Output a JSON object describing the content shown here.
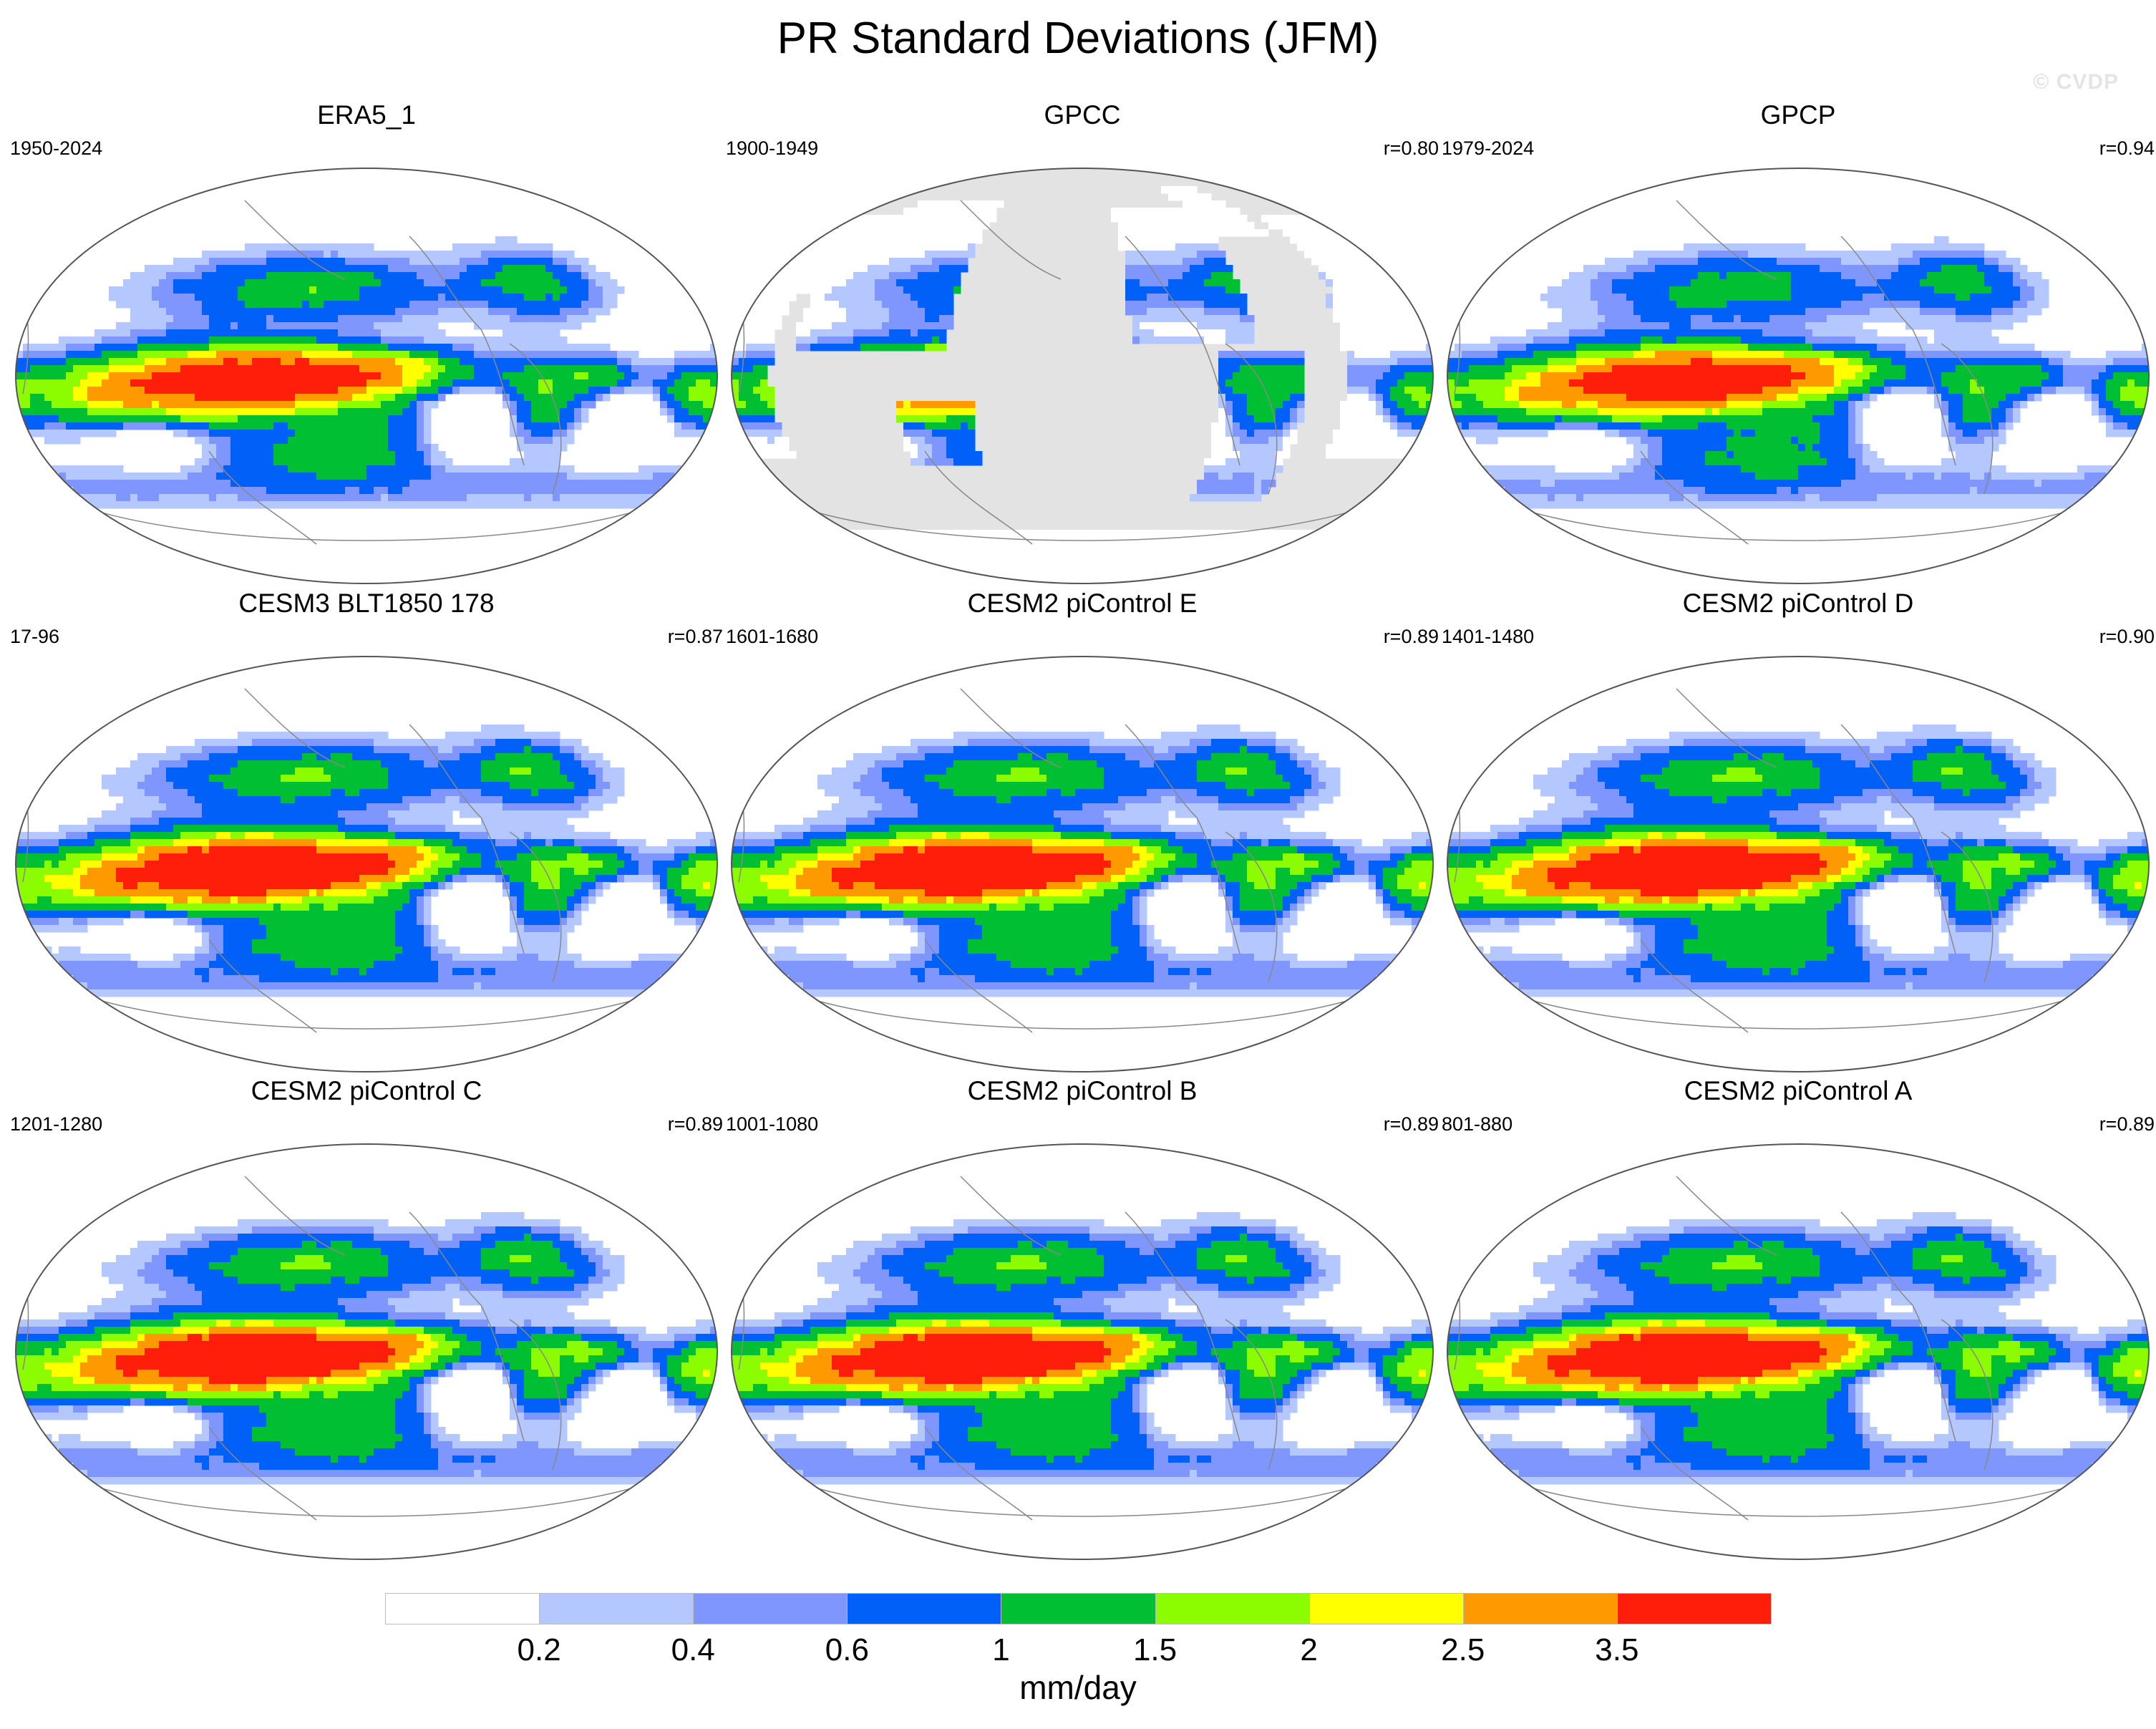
{
  "title": "PR Standard Deviations (JFM)",
  "watermark": "© CVDP",
  "colors": {
    "levels": [
      "#ffffff",
      "#b4c8ff",
      "#7f96ff",
      "#0060f7",
      "#00bf32",
      "#8cfc00",
      "#ffff00",
      "#ff9900",
      "#ff1e0a"
    ],
    "land_mask": "#e3e3e3",
    "coastline": "#888888",
    "map_border": "#555555"
  },
  "panels": [
    {
      "title": "ERA5_1",
      "period": "1950-2024",
      "corr": "",
      "field": "era5"
    },
    {
      "title": "GPCC",
      "period": "1900-1949",
      "corr": "r=0.80",
      "field": "gpcc"
    },
    {
      "title": "GPCP",
      "period": "1979-2024",
      "corr": "r=0.94",
      "field": "gpcp"
    },
    {
      "title": "CESM3 BLT1850 178",
      "period": "17-96",
      "corr": "r=0.87",
      "field": "model"
    },
    {
      "title": "CESM2 piControl E",
      "period": "1601-1680",
      "corr": "r=0.89",
      "field": "model"
    },
    {
      "title": "CESM2 piControl D",
      "period": "1401-1480",
      "corr": "r=0.90",
      "field": "model"
    },
    {
      "title": "CESM2 piControl C",
      "period": "1201-1280",
      "corr": "r=0.89",
      "field": "model"
    },
    {
      "title": "CESM2 piControl B",
      "period": "1001-1080",
      "corr": "r=0.89",
      "field": "model"
    },
    {
      "title": "CESM2 piControl A",
      "period": "801-880",
      "corr": "r=0.89",
      "field": "model"
    }
  ],
  "colorbar": {
    "ticks": [
      "0.2",
      "0.4",
      "0.6",
      "1",
      "1.5",
      "2",
      "2.5",
      "3.5"
    ],
    "units": "mm/day"
  }
}
